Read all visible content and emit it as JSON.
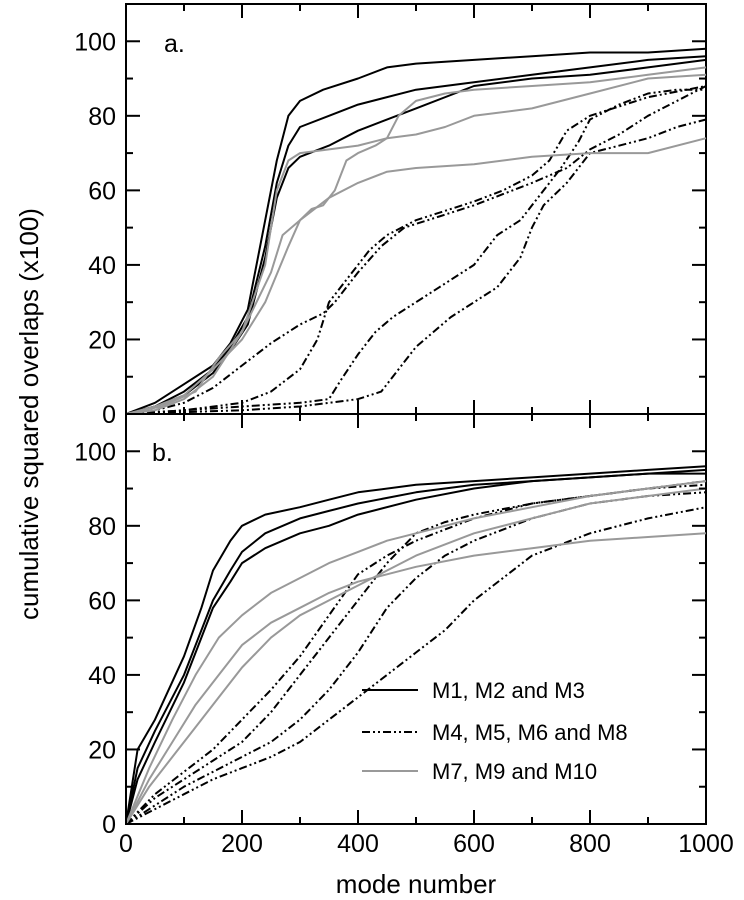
{
  "chart_data": {
    "type": "line",
    "ylabel": "cumulative squared overlaps (x100)",
    "xlabel": "mode number",
    "xlim": [
      0,
      1000
    ],
    "ylim": [
      0,
      110
    ],
    "x_ticks": [
      "0",
      "200",
      "400",
      "600",
      "800",
      "1000"
    ],
    "y_ticks": [
      "0",
      "20",
      "40",
      "60",
      "80",
      "100"
    ],
    "legend": {
      "placement": "lower-right of panel b",
      "entries": [
        {
          "label": "M1, M2 and M3",
          "style": "solid",
          "color": "#000000"
        },
        {
          "label": "M4, M5, M6 and M8",
          "style": "dash-dot-dot",
          "color": "#000000"
        },
        {
          "label": "M7, M9 and M10",
          "style": "solid",
          "color": "#999999"
        }
      ]
    },
    "panels": [
      {
        "label": "a.",
        "series": [
          {
            "group": "M1, M2 and M3",
            "x": [
              0,
              50,
              100,
              150,
              180,
              210,
              240,
              260,
              280,
              300,
              340,
              400,
              450,
              500,
              600,
              700,
              800,
              900,
              1000
            ],
            "y": [
              0,
              3,
              8,
              13,
              19,
              28,
              52,
              68,
              80,
              84,
              87,
              90,
              93,
              94,
              95,
              96,
              97,
              97,
              98
            ]
          },
          {
            "group": "M1, M2 and M3",
            "x": [
              0,
              50,
              100,
              150,
              180,
              210,
              240,
              260,
              280,
              300,
              350,
              400,
              500,
              600,
              700,
              800,
              900,
              1000
            ],
            "y": [
              0,
              2,
              6,
              12,
              18,
              26,
              45,
              62,
              72,
              77,
              80,
              83,
              87,
              89,
              91,
              93,
              95,
              96
            ]
          },
          {
            "group": "M1, M2 and M3",
            "x": [
              0,
              50,
              100,
              150,
              180,
              210,
              240,
              260,
              280,
              300,
              350,
              400,
              500,
              600,
              700,
              800,
              900,
              1000
            ],
            "y": [
              0,
              2,
              5,
              11,
              17,
              24,
              42,
              58,
              66,
              69,
              72,
              76,
              82,
              88,
              90,
              91,
              93,
              95
            ]
          },
          {
            "group": "M4, M5, M6 and M8",
            "x": [
              0,
              50,
              100,
              150,
              200,
              250,
              300,
              340,
              360,
              400,
              440,
              480,
              540,
              600,
              650,
              700,
              760,
              800,
              850,
              900,
              950,
              1000
            ],
            "y": [
              0,
              1,
              3,
              7,
              13,
              19,
              24,
              27,
              30,
              38,
              45,
              50,
              53,
              56,
              59,
              62,
              66,
              71,
              75,
              80,
              84,
              88
            ]
          },
          {
            "group": "M4, M5, M6 and M8",
            "x": [
              0,
              100,
              200,
              250,
              300,
              330,
              350,
              380,
              400,
              420,
              450,
              500,
              560,
              600,
              650,
              700,
              730,
              760,
              800,
              900,
              1000
            ],
            "y": [
              0,
              1,
              3,
              6,
              12,
              20,
              30,
              36,
              40,
              44,
              48,
              52,
              55,
              57,
              60,
              64,
              68,
              76,
              80,
              85,
              88
            ]
          },
          {
            "group": "M4, M5, M6 and M8",
            "x": [
              0,
              100,
              200,
              300,
              350,
              370,
              400,
              430,
              460,
              500,
              540,
              600,
              640,
              680,
              700,
              720,
              750,
              780,
              800,
              850,
              900,
              950,
              1000
            ],
            "y": [
              0,
              1,
              2,
              3,
              4,
              9,
              16,
              22,
              26,
              30,
              34,
              40,
              48,
              52,
              56,
              60,
              66,
              73,
              79,
              83,
              86,
              87,
              87
            ]
          },
          {
            "group": "M4, M5, M6 and M8",
            "x": [
              0,
              100,
              200,
              300,
              400,
              440,
              460,
              480,
              500,
              530,
              560,
              600,
              640,
              680,
              700,
              720,
              760,
              800,
              900,
              950,
              1000
            ],
            "y": [
              0,
              0.5,
              1,
              2,
              4,
              6,
              10,
              14,
              18,
              22,
              26,
              30,
              34,
              42,
              50,
              56,
              62,
              70,
              74,
              77,
              79
            ]
          },
          {
            "group": "M7, M9 and M10",
            "x": [
              0,
              50,
              100,
              150,
              200,
              250,
              270,
              300,
              320,
              340,
              360,
              380,
              400,
              430,
              450,
              470,
              500,
              550,
              600,
              700,
              800,
              900,
              1000
            ],
            "y": [
              0,
              1,
              4,
              10,
              22,
              38,
              48,
              52,
              55,
              56,
              60,
              68,
              70,
              72,
              74,
              80,
              84,
              86,
              87,
              88,
              89,
              91,
              93
            ]
          },
          {
            "group": "M7, M9 and M10",
            "x": [
              0,
              50,
              100,
              150,
              200,
              240,
              280,
              300,
              350,
              400,
              450,
              500,
              600,
              700,
              800,
              900,
              1000
            ],
            "y": [
              0,
              2,
              5,
              12,
              20,
              30,
              45,
              52,
              58,
              62,
              65,
              66,
              67,
              69,
              70,
              70,
              74
            ]
          },
          {
            "group": "M7, M9 and M10",
            "x": [
              0,
              60,
              120,
              160,
              200,
              240,
              260,
              280,
              300,
              400,
              450,
              500,
              550,
              600,
              700,
              800,
              900,
              1000
            ],
            "y": [
              0,
              2,
              6,
              15,
              22,
              40,
              60,
              68,
              70,
              72,
              74,
              75,
              77,
              80,
              82,
              86,
              90,
              91
            ]
          }
        ]
      },
      {
        "label": "b.",
        "series": [
          {
            "group": "M1, M2 and M3",
            "x": [
              0,
              20,
              50,
              100,
              130,
              150,
              180,
              200,
              240,
              300,
              350,
              400,
              500,
              600,
              700,
              800,
              900,
              1000
            ],
            "y": [
              0,
              20,
              28,
              45,
              58,
              68,
              76,
              80,
              83,
              85,
              87,
              89,
              91,
              92,
              93,
              94,
              95,
              96
            ]
          },
          {
            "group": "M1, M2 and M3",
            "x": [
              0,
              20,
              50,
              100,
              130,
              150,
              180,
              200,
              240,
              300,
              350,
              400,
              500,
              600,
              700,
              800,
              900,
              1000
            ],
            "y": [
              0,
              15,
              25,
              40,
              52,
              60,
              68,
              73,
              78,
              82,
              84,
              86,
              89,
              91,
              92,
              93,
              94,
              95
            ]
          },
          {
            "group": "M1, M2 and M3",
            "x": [
              0,
              20,
              50,
              100,
              130,
              150,
              180,
              200,
              240,
              300,
              350,
              400,
              500,
              600,
              700,
              800,
              900,
              1000
            ],
            "y": [
              0,
              12,
              22,
              38,
              50,
              58,
              65,
              70,
              74,
              78,
              80,
              83,
              87,
              90,
              92,
              93,
              94,
              94
            ]
          },
          {
            "group": "M4, M5, M6 and M8",
            "x": [
              0,
              50,
              100,
              150,
              200,
              250,
              300,
              350,
              400,
              450,
              500,
              550,
              600,
              700,
              800,
              900,
              1000
            ],
            "y": [
              0,
              8,
              14,
              20,
              28,
              36,
              45,
              56,
              67,
              72,
              76,
              79,
              82,
              86,
              88,
              90,
              92
            ]
          },
          {
            "group": "M4, M5, M6 and M8",
            "x": [
              0,
              50,
              100,
              150,
              200,
              250,
              300,
              350,
              400,
              450,
              500,
              550,
              600,
              700,
              800,
              900,
              1000
            ],
            "y": [
              0,
              7,
              12,
              17,
              22,
              30,
              40,
              50,
              60,
              70,
              78,
              81,
              83,
              86,
              88,
              90,
              91
            ]
          },
          {
            "group": "M4, M5, M6 and M8",
            "x": [
              0,
              50,
              100,
              150,
              200,
              250,
              300,
              350,
              400,
              450,
              500,
              550,
              600,
              700,
              800,
              900,
              1000
            ],
            "y": [
              0,
              5,
              10,
              14,
              18,
              22,
              28,
              36,
              46,
              58,
              66,
              72,
              76,
              82,
              86,
              88,
              89
            ]
          },
          {
            "group": "M4, M5, M6 and M8",
            "x": [
              0,
              50,
              100,
              150,
              200,
              250,
              300,
              350,
              400,
              450,
              500,
              550,
              600,
              700,
              800,
              900,
              1000
            ],
            "y": [
              0,
              4,
              8,
              12,
              15,
              18,
              22,
              28,
              34,
              40,
              46,
              52,
              60,
              72,
              78,
              82,
              85
            ]
          },
          {
            "group": "M7, M9 and M10",
            "x": [
              0,
              40,
              80,
              120,
              160,
              200,
              250,
              300,
              350,
              400,
              450,
              500,
              600,
              700,
              800,
              900,
              1000
            ],
            "y": [
              0,
              15,
              28,
              40,
              50,
              56,
              62,
              66,
              70,
              73,
              76,
              78,
              82,
              85,
              88,
              90,
              92
            ]
          },
          {
            "group": "M7, M9 and M10",
            "x": [
              0,
              40,
              80,
              120,
              160,
              200,
              250,
              300,
              350,
              400,
              450,
              500,
              600,
              700,
              800,
              900,
              1000
            ],
            "y": [
              0,
              12,
              22,
              32,
              40,
              48,
              54,
              58,
              62,
              65,
              67,
              69,
              72,
              74,
              76,
              77,
              78
            ]
          },
          {
            "group": "M7, M9 and M10",
            "x": [
              0,
              40,
              80,
              120,
              160,
              200,
              250,
              300,
              350,
              400,
              450,
              500,
              600,
              700,
              800,
              900,
              1000
            ],
            "y": [
              0,
              10,
              18,
              26,
              34,
              42,
              50,
              56,
              60,
              64,
              68,
              72,
              78,
              82,
              86,
              88,
              90
            ]
          }
        ]
      }
    ]
  }
}
